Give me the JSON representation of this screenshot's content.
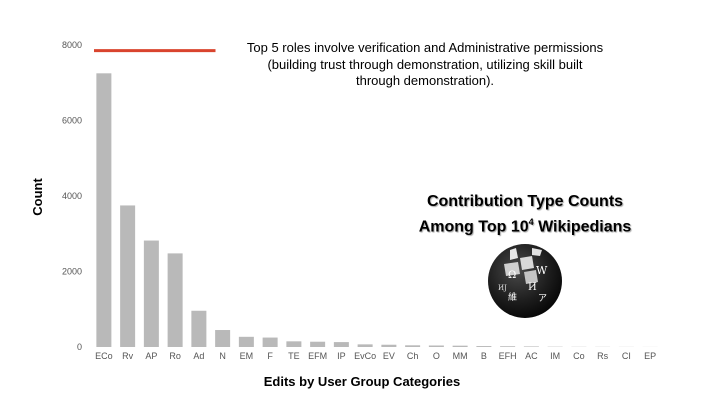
{
  "chart_data": {
    "type": "bar",
    "categories": [
      "ECo",
      "Rv",
      "AP",
      "Ro",
      "Ad",
      "N",
      "EM",
      "F",
      "TE",
      "EFM",
      "IP",
      "EvCo",
      "EV",
      "Ch",
      "O",
      "MM",
      "B",
      "EFH",
      "AC",
      "IM",
      "Co",
      "Rs",
      "CI",
      "EP"
    ],
    "values": [
      7250,
      3750,
      2820,
      2480,
      960,
      450,
      270,
      250,
      150,
      140,
      130,
      70,
      60,
      45,
      40,
      35,
      25,
      20,
      15,
      8,
      5,
      4,
      3,
      2
    ],
    "xlabel": "Edits by User Group Categories",
    "ylabel": "Count",
    "ylim": [
      0,
      8000
    ],
    "yticks": [
      "0",
      "2000",
      "4000",
      "6000",
      "8000"
    ],
    "reference_line_value": 7850,
    "grid": false,
    "legend": "none",
    "colors": {
      "bar": "#b9b9b9",
      "reference_line": "#d9442e"
    }
  },
  "annotation": {
    "lines": [
      "Top 5 roles involve verification and Administrative permissions",
      "(building trust through demonstration, utilizing skill built",
      "through demonstration)."
    ]
  },
  "title": {
    "line1": "Contribution Type Counts",
    "line2_prefix": "Among Top 10",
    "line2_sup": "4",
    "line2_suffix": " Wikipedians"
  },
  "logo": {
    "icon": "wikipedia-globe-icon",
    "glyphs": [
      "W",
      "Ω",
      "И",
      "ИJ",
      "維",
      "ア"
    ]
  }
}
